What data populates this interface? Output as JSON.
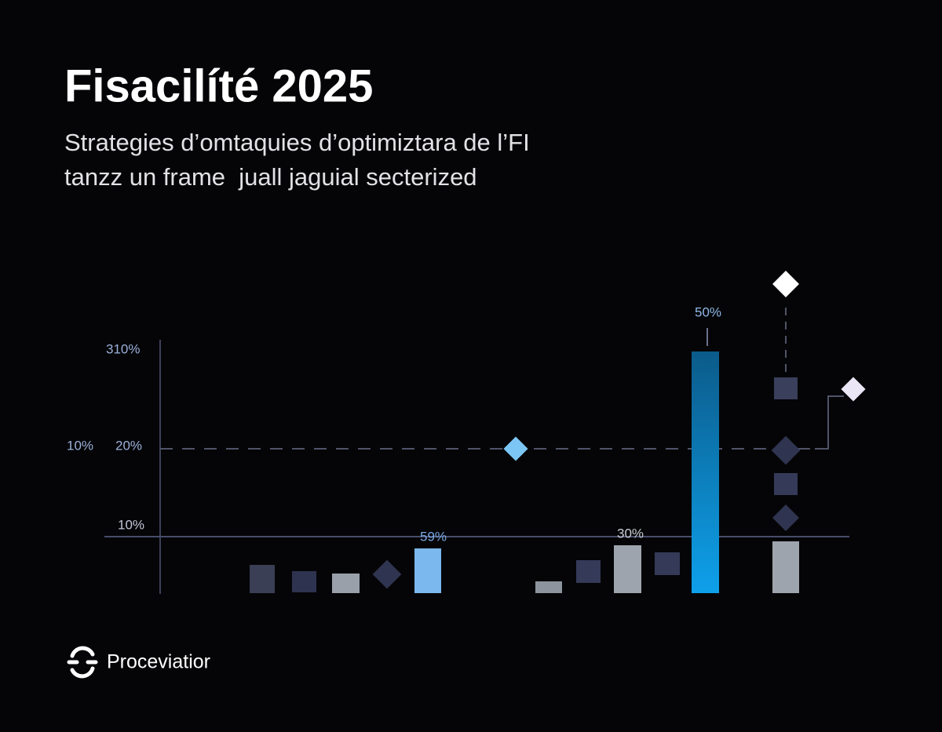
{
  "header": {
    "title": "Fisacilíté 2025",
    "subtitle_lines": [
      "Strategies d’omtaquies d’optimiztara de l’FI",
      "tanzz un frame  juall jaguial secterized"
    ]
  },
  "graphic": {
    "axis_labels": [
      "310%",
      "10%",
      "20%",
      "10%"
    ],
    "data_labels": [
      "59%",
      "30%",
      "50%"
    ]
  },
  "footer": {
    "brand": "Proceviatior"
  }
}
